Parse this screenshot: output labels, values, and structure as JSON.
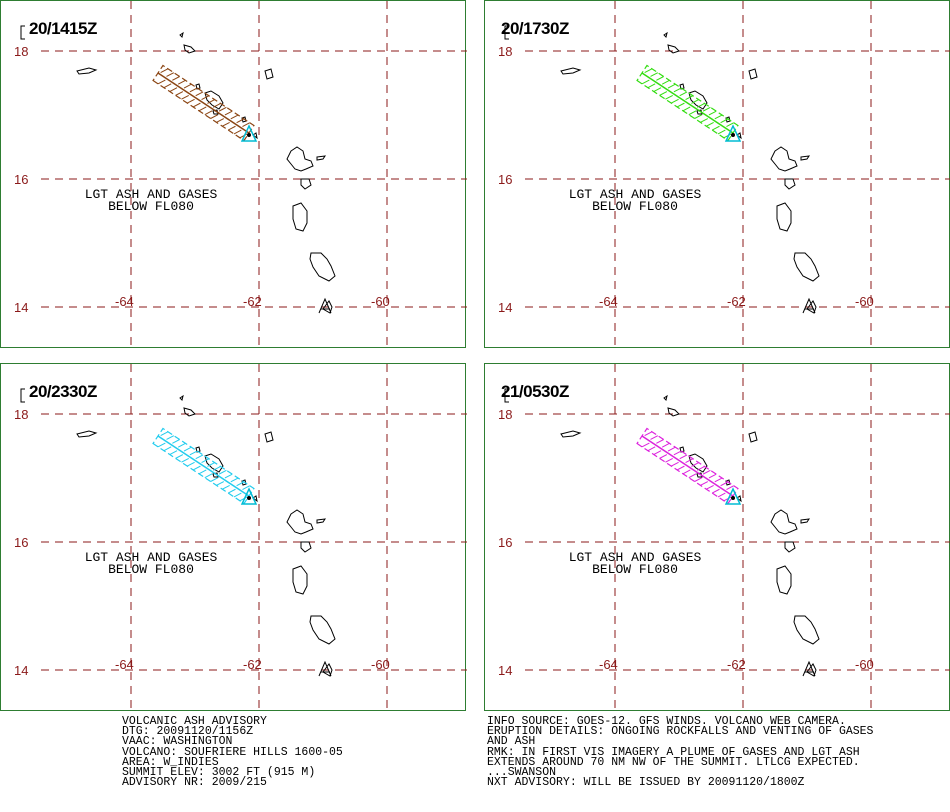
{
  "map": {
    "lat_labels": [
      "18",
      "16",
      "14"
    ],
    "lon_labels": [
      "-64",
      "-62",
      "-60"
    ],
    "colors": {
      "grid": "#8b1a1a",
      "border": "#2e7d32",
      "volcano": "#00bcd4"
    }
  },
  "panels": [
    {
      "time": "20/1415Z",
      "color": "#8b4513",
      "desc": [
        "LGT ASH AND GASES",
        "BELOW FL080"
      ]
    },
    {
      "time": "20/1730Z",
      "color": "#33dd11",
      "desc": [
        "LGT ASH AND GASES",
        "BELOW FL080"
      ]
    },
    {
      "time": "20/2330Z",
      "color": "#22ccee",
      "desc": [
        "LGT ASH AND GASES",
        "BELOW FL080"
      ]
    },
    {
      "time": "21/0530Z",
      "color": "#dd22dd",
      "desc": [
        "LGT ASH AND GASES",
        "BELOW FL080"
      ]
    }
  ],
  "advisory": {
    "left": [
      "VOLCANIC ASH ADVISORY",
      "DTG: 20091120/1156Z",
      "VAAC: WASHINGTON",
      "VOLCANO: SOUFRIERE HILLS 1600-05",
      "AREA: W_INDIES",
      "SUMMIT ELEV: 3002 FT (915 M)",
      "ADVISORY NR: 2009/215"
    ],
    "right": [
      "INFO SOURCE: GOES-12. GFS WINDS. VOLCANO WEB CAMERA.",
      "ERUPTION DETAILS: ONGOING ROCKFALLS AND VENTING OF GASES",
      "AND ASH",
      "RMK: IN FIRST VIS IMAGERY A PLUME OF GASES AND LGT ASH",
      "EXTENDS AROUND 70 NM NW OF THE SUMMIT. LTLCG EXPECTED.",
      "...SWANSON",
      "NXT ADVISORY: WILL BE ISSUED BY 20091120/1800Z"
    ]
  }
}
